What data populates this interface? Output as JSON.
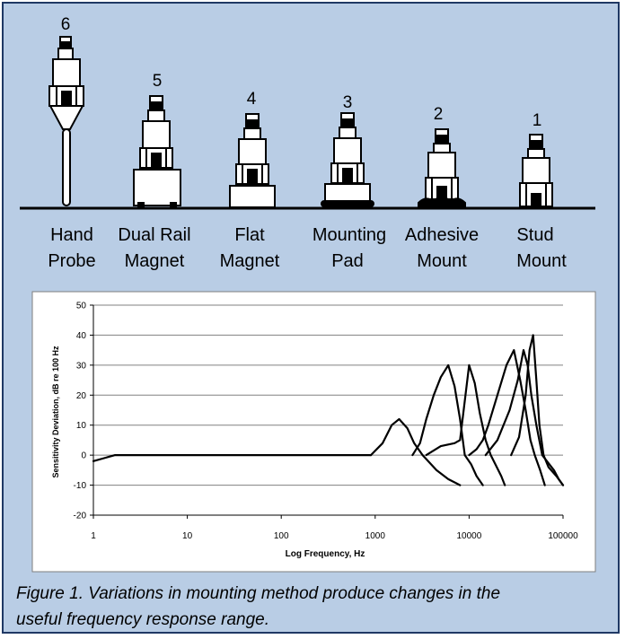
{
  "mounts": [
    {
      "number": "6",
      "line1": "Hand",
      "line2": "Probe"
    },
    {
      "number": "5",
      "line1": "Dual Rail",
      "line2": "Magnet"
    },
    {
      "number": "4",
      "line1": "Flat",
      "line2": "Magnet"
    },
    {
      "number": "3",
      "line1": "Mounting",
      "line2": "Pad"
    },
    {
      "number": "2",
      "line1": "Adhesive",
      "line2": "Mount"
    },
    {
      "number": "1",
      "line1": "Stud",
      "line2": "Mount"
    }
  ],
  "caption": {
    "line1": "Figure 1.  Variations in mounting method produce changes in the",
    "line2": "useful frequency response range."
  },
  "colors": {
    "background": "#b9cde5",
    "border": "#1f3864",
    "ink": "#000000",
    "grid": "#808080"
  },
  "chart_data": {
    "type": "line",
    "xlabel": "Log Frequency, Hz",
    "ylabel": "Sensitivity Deviation, dB re 100 Hz",
    "xscale": "log",
    "xlim": [
      1,
      100000
    ],
    "ylim": [
      -20,
      50
    ],
    "xticks": [
      "1",
      "10",
      "100",
      "1000",
      "10000",
      "100000"
    ],
    "yticks": [
      "50",
      "40",
      "30",
      "20",
      "10",
      "0",
      "-10",
      "-20"
    ],
    "grid": "horizontal",
    "series": [
      {
        "x": [
          1,
          1.3,
          1.7,
          900
        ],
        "y": [
          -2,
          -1,
          0,
          0
        ]
      },
      {
        "x": [
          900,
          1200,
          1500,
          1800,
          2200,
          2600,
          3200,
          4500,
          6000,
          8000
        ],
        "y": [
          0,
          4,
          10,
          12,
          9,
          4,
          0,
          -5,
          -8,
          -10
        ]
      },
      {
        "x": [
          2500,
          3000,
          3500,
          4200,
          5000,
          6000,
          7000,
          8000,
          9000,
          10500,
          12000,
          14000
        ],
        "y": [
          0,
          4,
          12,
          20,
          26,
          30,
          23,
          12,
          0,
          -3,
          -7,
          -10
        ]
      },
      {
        "x": [
          3500,
          5000,
          7000,
          8000,
          10000,
          11500,
          13000,
          15000,
          17000,
          19000,
          22000,
          24000
        ],
        "y": [
          0,
          3,
          4,
          5,
          30,
          24,
          14,
          5,
          0,
          -3,
          -7,
          -10
        ]
      },
      {
        "x": [
          10000,
          12000,
          14000,
          16000,
          20000,
          25000,
          30000,
          35000,
          40000,
          45000,
          50000,
          57000,
          64000
        ],
        "y": [
          0,
          2,
          5,
          10,
          20,
          30,
          35,
          25,
          15,
          5,
          0,
          -5,
          -10
        ]
      },
      {
        "x": [
          15000,
          20000,
          27000,
          33000,
          38000,
          42000,
          46000,
          52000,
          60000,
          80000,
          90000,
          100000
        ],
        "y": [
          0,
          5,
          15,
          25,
          35,
          30,
          20,
          10,
          0,
          -5,
          -8,
          -10
        ]
      },
      {
        "x": [
          28000,
          34000,
          40000,
          44000,
          48000,
          52000,
          56000,
          62000,
          70000,
          85000,
          100000
        ],
        "y": [
          0,
          6,
          20,
          35,
          40,
          25,
          10,
          0,
          -4,
          -7,
          -10
        ]
      }
    ]
  }
}
